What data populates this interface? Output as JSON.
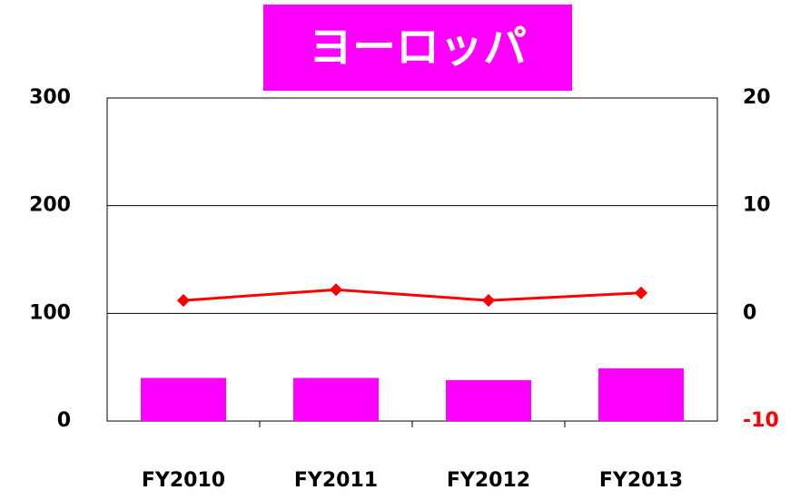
{
  "chart_data": {
    "type": "bar",
    "title": "ヨーロッパ",
    "title_background": "#ff00ff",
    "categories": [
      "FY2010",
      "FY2011",
      "FY2012",
      "FY2013"
    ],
    "series": [
      {
        "type": "bar",
        "color": "#ff00ff",
        "values": [
          40,
          40,
          38,
          49
        ]
      },
      {
        "type": "line",
        "color": "#ff0000",
        "axis": "y2",
        "values": [
          1.2,
          2.2,
          1.2,
          1.9
        ]
      }
    ],
    "ylim": [
      0,
      300
    ],
    "yticks": [
      0,
      100,
      200,
      300
    ],
    "y2lim": [
      -10,
      20
    ],
    "y2ticks": [
      -10,
      0,
      10,
      20
    ],
    "grid": true
  }
}
